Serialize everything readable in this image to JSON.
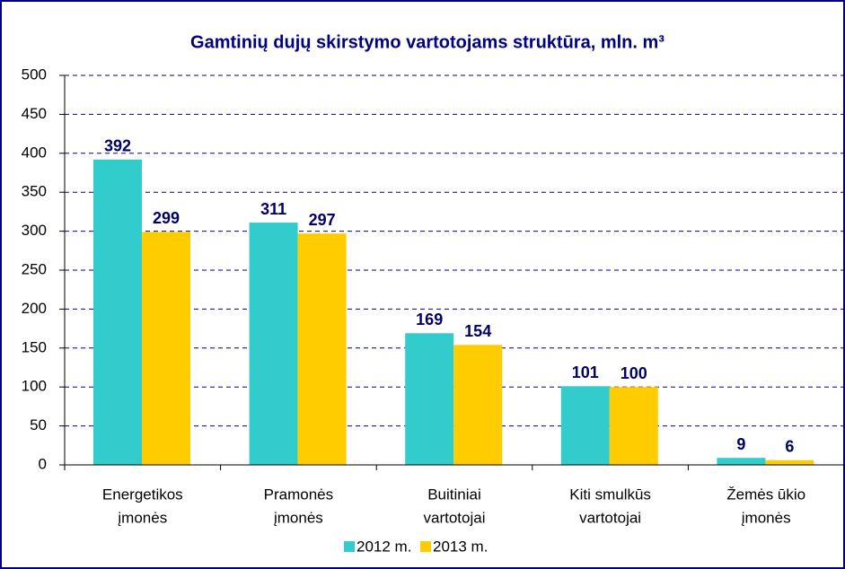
{
  "chart_data": {
    "type": "bar",
    "title": "Gamtinių dujų skirstymo vartotojams struktūra, mln. m³",
    "categories": [
      [
        "Energetikos",
        "įmonės"
      ],
      [
        "Pramonės",
        "įmonės"
      ],
      [
        "Buitiniai",
        "vartotojai"
      ],
      [
        "Kiti smulkūs",
        "vartotojai"
      ],
      [
        "Žemės ūkio",
        "įmonės"
      ]
    ],
    "series": [
      {
        "name": "2012 m.",
        "color": "#33cccc",
        "values": [
          392,
          311,
          169,
          101,
          9
        ]
      },
      {
        "name": "2013 m.",
        "color": "#ffcc00",
        "values": [
          299,
          297,
          154,
          100,
          6
        ]
      }
    ],
    "ylim": [
      0,
      500
    ],
    "yticks": [
      0,
      50,
      100,
      150,
      200,
      250,
      300,
      350,
      400,
      450,
      500
    ],
    "grid": true,
    "legend": "bottom"
  }
}
